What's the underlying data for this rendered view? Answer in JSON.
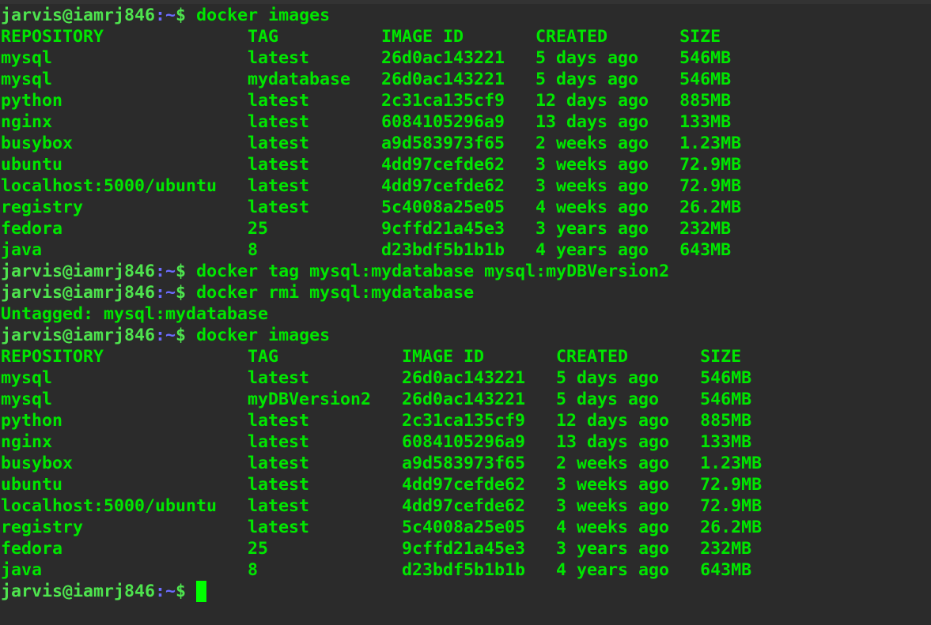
{
  "terminal": {
    "prompt": {
      "user_host": "jarvis@iamrj846",
      "sep": ":",
      "path": "~",
      "symbol": "$ "
    },
    "colors": {
      "background": "#2b2b2b",
      "text": "#00e600",
      "prompt": "#4ee44e",
      "path": "#6b6bff",
      "cursor": "#00ff00"
    },
    "blocks": [
      {
        "type": "command",
        "text": "docker images"
      },
      {
        "type": "table",
        "headers": [
          "REPOSITORY",
          "TAG",
          "IMAGE ID",
          "CREATED",
          "SIZE"
        ],
        "rows": [
          [
            "mysql",
            "latest",
            "26d0ac143221",
            "5 days ago",
            "546MB"
          ],
          [
            "mysql",
            "mydatabase",
            "26d0ac143221",
            "5 days ago",
            "546MB"
          ],
          [
            "python",
            "latest",
            "2c31ca135cf9",
            "12 days ago",
            "885MB"
          ],
          [
            "nginx",
            "latest",
            "6084105296a9",
            "13 days ago",
            "133MB"
          ],
          [
            "busybox",
            "latest",
            "a9d583973f65",
            "2 weeks ago",
            "1.23MB"
          ],
          [
            "ubuntu",
            "latest",
            "4dd97cefde62",
            "3 weeks ago",
            "72.9MB"
          ],
          [
            "localhost:5000/ubuntu",
            "latest",
            "4dd97cefde62",
            "3 weeks ago",
            "72.9MB"
          ],
          [
            "registry",
            "latest",
            "5c4008a25e05",
            "4 weeks ago",
            "26.2MB"
          ],
          [
            "fedora",
            "25",
            "9cffd21a45e3",
            "3 years ago",
            "232MB"
          ],
          [
            "java",
            "8",
            "d23bdf5b1b1b",
            "4 years ago",
            "643MB"
          ]
        ]
      },
      {
        "type": "command",
        "text": "docker tag mysql:mydatabase mysql:myDBVersion2"
      },
      {
        "type": "command",
        "text": "docker rmi mysql:mydatabase"
      },
      {
        "type": "output",
        "text": "Untagged: mysql:mydatabase"
      },
      {
        "type": "command",
        "text": "docker images"
      },
      {
        "type": "table",
        "headers": [
          "REPOSITORY",
          "TAG",
          "IMAGE ID",
          "CREATED",
          "SIZE"
        ],
        "rows": [
          [
            "mysql",
            "latest",
            "26d0ac143221",
            "5 days ago",
            "546MB"
          ],
          [
            "mysql",
            "myDBVersion2",
            "26d0ac143221",
            "5 days ago",
            "546MB"
          ],
          [
            "python",
            "latest",
            "2c31ca135cf9",
            "12 days ago",
            "885MB"
          ],
          [
            "nginx",
            "latest",
            "6084105296a9",
            "13 days ago",
            "133MB"
          ],
          [
            "busybox",
            "latest",
            "a9d583973f65",
            "2 weeks ago",
            "1.23MB"
          ],
          [
            "ubuntu",
            "latest",
            "4dd97cefde62",
            "3 weeks ago",
            "72.9MB"
          ],
          [
            "localhost:5000/ubuntu",
            "latest",
            "4dd97cefde62",
            "3 weeks ago",
            "72.9MB"
          ],
          [
            "registry",
            "latest",
            "5c4008a25e05",
            "4 weeks ago",
            "26.2MB"
          ],
          [
            "fedora",
            "25",
            "9cffd21a45e3",
            "3 years ago",
            "232MB"
          ],
          [
            "java",
            "8",
            "d23bdf5b1b1b",
            "4 years ago",
            "643MB"
          ]
        ]
      },
      {
        "type": "prompt",
        "text": ""
      }
    ]
  }
}
